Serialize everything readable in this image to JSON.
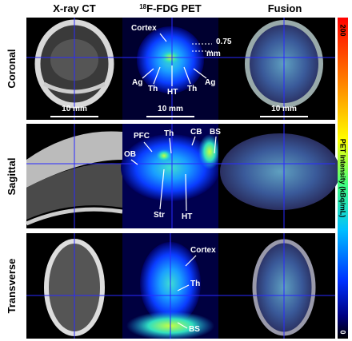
{
  "columns": [
    {
      "title": "X-ray CT"
    },
    {
      "superscript": "18",
      "title": "F-FDG PET"
    },
    {
      "title": "Fusion"
    }
  ],
  "rows": [
    {
      "label": "Coronal",
      "annotations": [
        "Cortex",
        "0.75",
        "mm",
        "Ag",
        "Th",
        "HT",
        "Th",
        "Ag"
      ],
      "scale_bars": [
        "10 mm",
        "10 mm",
        "10 mm"
      ]
    },
    {
      "label": "Sagittal",
      "annotations": [
        "PFC",
        "Th",
        "CB",
        "BS",
        "OB",
        "Str",
        "HT"
      ]
    },
    {
      "label": "Transverse",
      "annotations": [
        "Cortex",
        "Th",
        "BS"
      ]
    }
  ],
  "colorbar": {
    "max": 200,
    "min": 0,
    "label": "PET Intensity (kBq/mL)"
  }
}
